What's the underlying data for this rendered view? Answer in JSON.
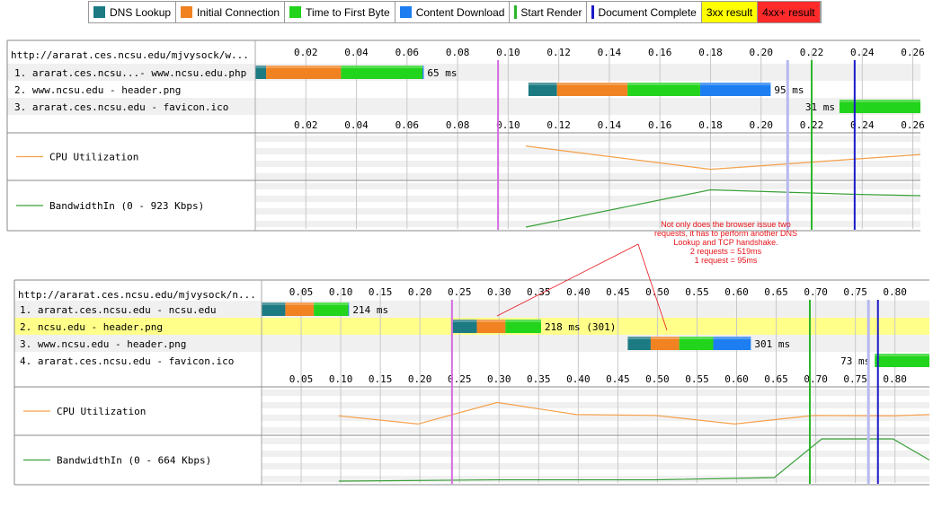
{
  "legend": {
    "items": [
      {
        "label": "DNS Lookup",
        "kind": "swatch",
        "color": "#1b7a82"
      },
      {
        "label": "Initial Connection",
        "kind": "swatch",
        "color": "#f08221"
      },
      {
        "label": "Time to First Byte",
        "kind": "swatch",
        "color": "#22d41b"
      },
      {
        "label": "Content Download",
        "kind": "swatch",
        "color": "#1c7ef0"
      },
      {
        "label": "Start Render",
        "kind": "line",
        "color": "#2bb52b"
      },
      {
        "label": "Document Complete",
        "kind": "line",
        "color": "#1a1ac8"
      },
      {
        "label": "3xx result",
        "kind": "box",
        "color": "#ffff00"
      },
      {
        "label": "4xx+ result",
        "kind": "box",
        "color": "#ff2b2b"
      }
    ]
  },
  "colors": {
    "dns": "#1b7a82",
    "connect": "#f08221",
    "ttfb": "#22d41b",
    "download": "#1c7ef0",
    "start_render": "#2bb52b",
    "doc_complete": "#1a1ac8",
    "marker": "#d36be0",
    "redirect_row": "#ffff8a",
    "cpu": "#f5a04a",
    "bw": "#3aa03a"
  },
  "annotation": {
    "lines": [
      "Not only does the browser issue two",
      "requests, it has to perform another DNS",
      "Lookup and TCP handshake.",
      "2 requests = 519ms",
      "1 request = 95ms"
    ],
    "color": "#e8151b"
  },
  "chart_data": [
    {
      "type": "waterfall",
      "url": "http://ararat.ces.ncsu.edu/mjvysock/w...",
      "ticks": [
        "0.02",
        "0.04",
        "0.06",
        "0.08",
        "0.10",
        "0.12",
        "0.14",
        "0.16",
        "0.18",
        "0.20",
        "0.22",
        "0.24",
        "0.26"
      ],
      "xlim": [
        0,
        0.263
      ],
      "requests": [
        {
          "label": "1. ararat.ces.ncsu...- www.ncsu.edu.php",
          "start": 0,
          "dns": 0.0043,
          "connect": 0.0296,
          "ttfb": 0.0322,
          "download": 0.0005,
          "duration": "65 ms",
          "redirect": false
        },
        {
          "label": "2. www.ncsu.edu - header.png",
          "start": 0.108,
          "dns": 0.0113,
          "connect": 0.0279,
          "ttfb": 0.0287,
          "download": 0.0279,
          "duration": "95 ms",
          "redirect": false
        },
        {
          "label": "3. ararat.ces.ncsu.edu - favicon.ico",
          "start": 0.231,
          "dns": 0,
          "connect": 0,
          "ttfb": 0.032,
          "download": 0,
          "duration": "31 ms",
          "redirect": false
        }
      ],
      "start_render": 0.22,
      "doc_complete": 0.237,
      "dom_marker": 0.096,
      "dom_loaded": 0.2105,
      "cpu": {
        "label": "CPU Utilization",
        "points": [
          [
            0.107,
            0.75
          ],
          [
            0.18,
            0.2
          ],
          [
            0.263,
            0.55
          ]
        ]
      },
      "bandwidth": {
        "label": "BandwidthIn (0 - 923 Kbps)",
        "points": [
          [
            0.107,
            0.02
          ],
          [
            0.18,
            0.85
          ],
          [
            0.237,
            0.75
          ],
          [
            0.263,
            0.72
          ]
        ]
      }
    },
    {
      "type": "waterfall",
      "url": "http://ararat.ces.ncsu.edu/mjvysock/n...",
      "ticks": [
        "0.05",
        "0.10",
        "0.15",
        "0.20",
        "0.25",
        "0.30",
        "0.35",
        "0.40",
        "0.45",
        "0.50",
        "0.55",
        "0.60",
        "0.65",
        "0.70",
        "0.75",
        "0.80"
      ],
      "xlim": [
        0,
        0.8435
      ],
      "requests": [
        {
          "label": "1. ararat.ces.ncsu.edu - ncsu.edu",
          "start": 0,
          "dns": 0.03,
          "connect": 0.036,
          "ttfb": 0.0435,
          "download": 0.001,
          "duration": "214 ms",
          "redirect": false
        },
        {
          "label": "2. ncsu.edu - header.png",
          "start": 0.2415,
          "dns": 0.0305,
          "connect": 0.036,
          "ttfb": 0.045,
          "download": 0,
          "duration": "218 ms (301)",
          "redirect": true
        },
        {
          "label": "3. www.ncsu.edu - header.png",
          "start": 0.4625,
          "dns": 0.029,
          "connect": 0.036,
          "ttfb": 0.043,
          "download": 0.0475,
          "duration": "301 ms",
          "redirect": false
        },
        {
          "label": "4. ararat.ces.ncsu.edu - favicon.ico",
          "start": 0.7745,
          "dns": 0,
          "connect": 0,
          "ttfb": 0.069,
          "download": 0,
          "duration": "73 ms",
          "redirect": false
        }
      ],
      "start_render": 0.6925,
      "doc_complete": 0.7785,
      "dom_marker": 0.2405,
      "dom_loaded": 0.7665,
      "cpu": {
        "label": "CPU Utilization",
        "points": [
          [
            0.0975,
            0.39
          ],
          [
            0.1975,
            0.2
          ],
          [
            0.2975,
            0.7
          ],
          [
            0.3975,
            0.42
          ],
          [
            0.4975,
            0.4
          ],
          [
            0.5975,
            0.2
          ],
          [
            0.6975,
            0.4
          ],
          [
            0.7975,
            0.39
          ],
          [
            0.8435,
            0.42
          ]
        ]
      },
      "bandwidth": {
        "label": "BandwidthIn (0 - 664 Kbps)",
        "points": [
          [
            0.0975,
            0.02
          ],
          [
            0.2975,
            0.05
          ],
          [
            0.4975,
            0.05
          ],
          [
            0.6475,
            0.1
          ],
          [
            0.7075,
            0.98
          ],
          [
            0.7975,
            0.98
          ],
          [
            0.8435,
            0.5
          ]
        ]
      }
    }
  ]
}
